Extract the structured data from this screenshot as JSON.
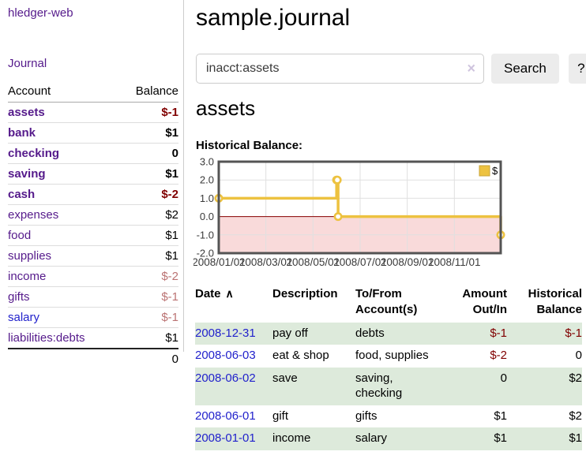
{
  "app": {
    "title": "hledger-web"
  },
  "sidebar": {
    "journal_link": "Journal",
    "accounts": {
      "header": {
        "account": "Account",
        "balance": "Balance"
      },
      "rows": [
        {
          "name": "assets",
          "level": 1,
          "bold": true,
          "balance": "$-1",
          "balance_style": "neg"
        },
        {
          "name": "bank",
          "level": 2,
          "bold": true,
          "balance": "$1",
          "balance_style": "pos"
        },
        {
          "name": "checking",
          "level": 3,
          "bold": true,
          "balance": "0",
          "balance_style": "pos"
        },
        {
          "name": "saving",
          "level": 3,
          "bold": true,
          "balance": "$1",
          "balance_style": "pos"
        },
        {
          "name": "cash",
          "level": 2,
          "bold": true,
          "balance": "$-2",
          "balance_style": "neg"
        },
        {
          "name": "expenses",
          "level": 1,
          "bold": false,
          "balance": "$2",
          "balance_style": "pos"
        },
        {
          "name": "food",
          "level": 2,
          "bold": false,
          "balance": "$1",
          "balance_style": "pos"
        },
        {
          "name": "supplies",
          "level": 2,
          "bold": false,
          "balance": "$1",
          "balance_style": "pos"
        },
        {
          "name": "income",
          "level": 1,
          "bold": false,
          "balance": "$-2",
          "balance_style": "negsoft"
        },
        {
          "name": "gifts",
          "level": 2,
          "bold": false,
          "balance": "$-1",
          "balance_style": "negsoft"
        },
        {
          "name": "salary",
          "level": 2,
          "bold": false,
          "balance": "$-1",
          "balance_style": "negsoft",
          "link_color": "blue"
        },
        {
          "name": "liabilities:debts",
          "level": 1,
          "bold": false,
          "balance": "$1",
          "balance_style": "pos"
        }
      ],
      "total": "0"
    }
  },
  "header": {
    "title": "sample.journal"
  },
  "search": {
    "value": "inacct:assets",
    "clear_icon": "×",
    "button_label": "Search",
    "help_label": "?"
  },
  "account_page": {
    "title": "assets",
    "chart_label": "Historical Balance:"
  },
  "chart_data": {
    "type": "line",
    "step": true,
    "title": "Historical Balance",
    "series": [
      {
        "name": "$",
        "color": "#edc240",
        "points": [
          [
            "2008-01-01",
            1
          ],
          [
            "2008-06-01",
            2
          ],
          [
            "2008-06-02",
            2
          ],
          [
            "2008-06-03",
            0
          ],
          [
            "2008-12-31",
            -1
          ]
        ]
      }
    ],
    "ylim": [
      -2,
      3
    ],
    "yticks": [
      {
        "label": "3.0",
        "v": 3
      },
      {
        "label": "2.0",
        "v": 2
      },
      {
        "label": "1.0",
        "v": 1
      },
      {
        "label": "0.0",
        "v": 0
      },
      {
        "label": "-1.0",
        "v": -1
      },
      {
        "label": "-2.0",
        "v": -2
      }
    ],
    "xticks": [
      {
        "label": "2008/01/01",
        "m": 0
      },
      {
        "label": "2008/03/01",
        "m": 2
      },
      {
        "label": "2008/05/01",
        "m": 4
      },
      {
        "label": "2008/07/01",
        "m": 6
      },
      {
        "label": "2008/09/01",
        "m": 8
      },
      {
        "label": "2008/11/01",
        "m": 10
      }
    ],
    "grid": true,
    "legend_position": "top-right",
    "legend_label": "$",
    "colors": {
      "border": "#545454",
      "gridline": "#e0e0e0",
      "zero_line": "#8b0000",
      "negative_region": "#f9dada",
      "marker_fill": "#ffffff"
    }
  },
  "register": {
    "columns": [
      {
        "label": "Date",
        "sort_icon": "∧"
      },
      {
        "label": "Description"
      },
      {
        "label": [
          "To/From",
          "Account(s)"
        ]
      },
      {
        "label": [
          "Amount",
          "Out/In"
        ]
      },
      {
        "label": [
          "Historical",
          "Balance"
        ]
      }
    ],
    "rows": [
      {
        "date": "2008-12-31",
        "description": "pay off",
        "accounts": "debts",
        "amount": "$-1",
        "amount_style": "neg",
        "balance": "$-1",
        "balance_style": "neg",
        "shaded": true
      },
      {
        "date": "2008-06-03",
        "description": "eat & shop",
        "accounts": "food, supplies",
        "amount": "$-2",
        "amount_style": "neg",
        "balance": "0",
        "balance_style": "pos",
        "shaded": false
      },
      {
        "date": "2008-06-02",
        "description": "save",
        "accounts": [
          "saving,",
          "checking"
        ],
        "amount": "0",
        "amount_style": "pos",
        "balance": "$2",
        "balance_style": "pos",
        "shaded": true
      },
      {
        "date": "2008-06-01",
        "description": "gift",
        "accounts": "gifts",
        "amount": "$1",
        "amount_style": "pos",
        "balance": "$2",
        "balance_style": "pos",
        "shaded": false
      },
      {
        "date": "2008-01-01",
        "description": "income",
        "accounts": "salary",
        "amount": "$1",
        "amount_style": "pos",
        "balance": "$1",
        "balance_style": "pos",
        "shaded": true
      }
    ]
  }
}
